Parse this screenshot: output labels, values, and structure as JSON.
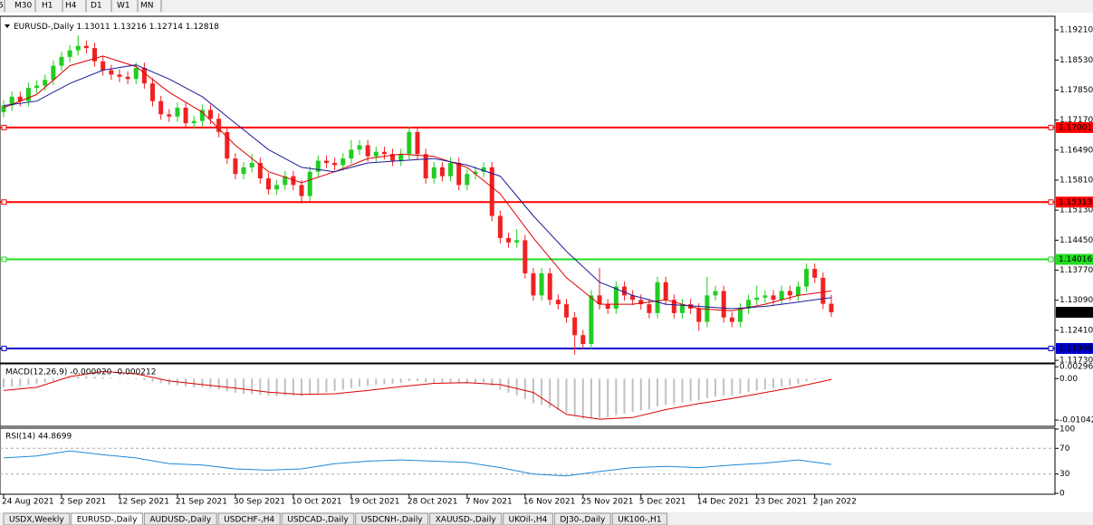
{
  "toolbar": {
    "timeframes": [
      "5",
      "M30",
      "H1",
      "H4",
      "D1",
      "W1",
      "MN"
    ]
  },
  "chart_data": [
    {
      "type": "candlestick",
      "title": "EURUSD-,Daily",
      "ohlc_header": [
        1.13011,
        1.13216,
        1.12714,
        1.12818
      ],
      "up_color": "#22cc22",
      "down_color": "#ee2222",
      "categories": [
        "24 Aug 2021",
        null,
        null,
        null,
        null,
        null,
        null,
        "2 Sep 2021",
        null,
        null,
        null,
        null,
        null,
        null,
        "12 Sep 2021",
        null,
        null,
        null,
        null,
        null,
        null,
        "21 Sep 2021",
        null,
        null,
        null,
        null,
        null,
        null,
        "30 Sep 2021",
        null,
        null,
        null,
        null,
        null,
        null,
        "10 Oct 2021",
        null,
        null,
        null,
        null,
        null,
        null,
        "19 Oct 2021",
        null,
        null,
        null,
        null,
        null,
        null,
        "28 Oct 2021",
        null,
        null,
        null,
        null,
        null,
        null,
        "7 Nov 2021",
        null,
        null,
        null,
        null,
        null,
        null,
        "16 Nov 2021",
        null,
        null,
        null,
        null,
        null,
        null,
        "25 Nov 2021",
        null,
        null,
        null,
        null,
        null,
        null,
        "5 Dec 2021",
        null,
        null,
        null,
        null,
        null,
        null,
        "14 Dec 2021",
        null,
        null,
        null,
        null,
        null,
        null,
        "23 Dec 2021",
        null,
        null,
        null,
        null,
        null,
        null,
        "2 Jan 2022",
        null,
        null
      ],
      "ohlc": [
        [
          1.1735,
          1.1762,
          1.1723,
          1.175
        ],
        [
          1.175,
          1.1782,
          1.1738,
          1.177
        ],
        [
          1.177,
          1.1782,
          1.1748,
          1.176
        ],
        [
          1.176,
          1.1802,
          1.1748,
          1.179
        ],
        [
          1.179,
          1.1807,
          1.1778,
          1.1795
        ],
        [
          1.1795,
          1.182,
          1.1783,
          1.1808
        ],
        [
          1.1808,
          1.1852,
          1.1796,
          1.184
        ],
        [
          1.184,
          1.1872,
          1.1828,
          1.186
        ],
        [
          1.186,
          1.1887,
          1.1848,
          1.1875
        ],
        [
          1.1875,
          1.1909,
          1.1863,
          1.1885
        ],
        [
          1.1885,
          1.1897,
          1.1868,
          1.188
        ],
        [
          1.188,
          1.1892,
          1.1838,
          1.185
        ],
        [
          1.185,
          1.1862,
          1.1818,
          1.183
        ],
        [
          1.183,
          1.1842,
          1.1808,
          1.182
        ],
        [
          1.182,
          1.1832,
          1.1803,
          1.1815
        ],
        [
          1.1815,
          1.1827,
          1.1798,
          1.181
        ],
        [
          1.181,
          1.1847,
          1.1798,
          1.1835
        ],
        [
          1.1835,
          1.1847,
          1.1788,
          1.18
        ],
        [
          1.18,
          1.1812,
          1.1748,
          1.176
        ],
        [
          1.176,
          1.1772,
          1.1718,
          1.173
        ],
        [
          1.173,
          1.1742,
          1.1713,
          1.1725
        ],
        [
          1.1725,
          1.1757,
          1.1713,
          1.1745
        ],
        [
          1.1745,
          1.1757,
          1.1698,
          1.171
        ],
        [
          1.171,
          1.1727,
          1.1698,
          1.1715
        ],
        [
          1.1715,
          1.1752,
          1.1703,
          1.174
        ],
        [
          1.174,
          1.1752,
          1.1708,
          1.172
        ],
        [
          1.172,
          1.1732,
          1.1678,
          1.169
        ],
        [
          1.169,
          1.1702,
          1.1618,
          1.163
        ],
        [
          1.163,
          1.1642,
          1.1583,
          1.1595
        ],
        [
          1.1595,
          1.1622,
          1.1583,
          1.161
        ],
        [
          1.161,
          1.164,
          1.1598,
          1.162
        ],
        [
          1.162,
          1.1632,
          1.1573,
          1.1585
        ],
        [
          1.1585,
          1.1597,
          1.1548,
          1.156
        ],
        [
          1.156,
          1.1582,
          1.1548,
          1.157
        ],
        [
          1.157,
          1.1602,
          1.1558,
          1.159
        ],
        [
          1.159,
          1.1602,
          1.1558,
          1.157
        ],
        [
          1.157,
          1.1582,
          1.1528,
          1.1545
        ],
        [
          1.1545,
          1.1612,
          1.1533,
          1.16
        ],
        [
          1.16,
          1.1637,
          1.1588,
          1.1625
        ],
        [
          1.1625,
          1.1637,
          1.1608,
          1.162
        ],
        [
          1.162,
          1.1632,
          1.1603,
          1.1615
        ],
        [
          1.1615,
          1.1642,
          1.1603,
          1.163
        ],
        [
          1.163,
          1.1672,
          1.1618,
          1.165
        ],
        [
          1.165,
          1.1672,
          1.1638,
          1.166
        ],
        [
          1.166,
          1.1672,
          1.1623,
          1.1635
        ],
        [
          1.1635,
          1.1657,
          1.1623,
          1.1645
        ],
        [
          1.1645,
          1.1657,
          1.1628,
          1.164
        ],
        [
          1.164,
          1.1652,
          1.1613,
          1.1625
        ],
        [
          1.1625,
          1.1652,
          1.1613,
          1.164
        ],
        [
          1.164,
          1.1702,
          1.1628,
          1.169
        ],
        [
          1.169,
          1.1702,
          1.1628,
          1.164
        ],
        [
          1.164,
          1.1652,
          1.1573,
          1.1585
        ],
        [
          1.1585,
          1.1622,
          1.1573,
          1.161
        ],
        [
          1.161,
          1.1622,
          1.1578,
          1.159
        ],
        [
          1.159,
          1.1632,
          1.1578,
          1.162
        ],
        [
          1.162,
          1.1632,
          1.1558,
          1.157
        ],
        [
          1.157,
          1.1607,
          1.1558,
          1.1595
        ],
        [
          1.1595,
          1.1612,
          1.1583,
          1.16
        ],
        [
          1.16,
          1.1622,
          1.1588,
          1.161
        ],
        [
          1.161,
          1.1622,
          1.1488,
          1.15
        ],
        [
          1.15,
          1.1512,
          1.1438,
          1.145
        ],
        [
          1.145,
          1.1462,
          1.1428,
          1.144
        ],
        [
          1.144,
          1.147,
          1.1428,
          1.1445
        ],
        [
          1.1445,
          1.1457,
          1.1358,
          1.137
        ],
        [
          1.137,
          1.1382,
          1.1308,
          1.132
        ],
        [
          1.132,
          1.1382,
          1.1308,
          1.137
        ],
        [
          1.137,
          1.1382,
          1.1298,
          1.131
        ],
        [
          1.131,
          1.1322,
          1.1288,
          1.13
        ],
        [
          1.13,
          1.1312,
          1.1258,
          1.127
        ],
        [
          1.127,
          1.1282,
          1.1186,
          1.123
        ],
        [
          1.123,
          1.1242,
          1.1198,
          1.121
        ],
        [
          1.121,
          1.1332,
          1.1198,
          1.132
        ],
        [
          1.132,
          1.1382,
          1.1288,
          1.13
        ],
        [
          1.13,
          1.1312,
          1.1278,
          1.129
        ],
        [
          1.129,
          1.1352,
          1.1278,
          1.134
        ],
        [
          1.134,
          1.1352,
          1.1308,
          1.132
        ],
        [
          1.132,
          1.1332,
          1.1298,
          1.131
        ],
        [
          1.131,
          1.1322,
          1.1288,
          1.13
        ],
        [
          1.13,
          1.1312,
          1.1268,
          1.128
        ],
        [
          1.128,
          1.1362,
          1.1268,
          1.135
        ],
        [
          1.135,
          1.1362,
          1.1298,
          1.131
        ],
        [
          1.131,
          1.1322,
          1.1268,
          1.128
        ],
        [
          1.128,
          1.1312,
          1.1268,
          1.13
        ],
        [
          1.13,
          1.1312,
          1.1278,
          1.129
        ],
        [
          1.129,
          1.1302,
          1.124,
          1.126
        ],
        [
          1.126,
          1.1362,
          1.1248,
          1.132
        ],
        [
          1.132,
          1.1342,
          1.1308,
          1.133
        ],
        [
          1.133,
          1.1342,
          1.1258,
          1.127
        ],
        [
          1.127,
          1.1282,
          1.1248,
          1.126
        ],
        [
          1.126,
          1.1302,
          1.1248,
          1.129
        ],
        [
          1.129,
          1.1322,
          1.1278,
          1.131
        ],
        [
          1.131,
          1.1342,
          1.1298,
          1.1315
        ],
        [
          1.1315,
          1.1332,
          1.1303,
          1.132
        ],
        [
          1.132,
          1.1332,
          1.1298,
          1.131
        ],
        [
          1.131,
          1.1342,
          1.1298,
          1.133
        ],
        [
          1.133,
          1.1342,
          1.1308,
          1.132
        ],
        [
          1.132,
          1.1352,
          1.1308,
          1.134
        ],
        [
          1.134,
          1.1392,
          1.1328,
          1.138
        ],
        [
          1.138,
          1.1392,
          1.1348,
          1.136
        ],
        [
          1.136,
          1.1372,
          1.1289,
          1.1301
        ],
        [
          1.13011,
          1.13216,
          1.12714,
          1.12818
        ]
      ],
      "series": [
        {
          "color": "#dd0000",
          "x": [
            0,
            4,
            8,
            12,
            16,
            20,
            24,
            28,
            32,
            36,
            40,
            44,
            48,
            52,
            56,
            60,
            64,
            68,
            72,
            76,
            80,
            84,
            88,
            92,
            96,
            100
          ],
          "values": [
            1.1745,
            1.1775,
            1.184,
            1.1862,
            1.1838,
            1.178,
            1.1735,
            1.166,
            1.16,
            1.1575,
            1.16,
            1.163,
            1.164,
            1.1635,
            1.161,
            1.155,
            1.145,
            1.136,
            1.13,
            1.13,
            1.131,
            1.129,
            1.1285,
            1.13,
            1.132,
            1.133
          ]
        },
        {
          "color": "#1a1a9a",
          "x": [
            0,
            4,
            8,
            12,
            16,
            20,
            24,
            28,
            32,
            36,
            40,
            44,
            48,
            52,
            56,
            60,
            64,
            68,
            72,
            76,
            80,
            84,
            88,
            92,
            96,
            100
          ],
          "values": [
            1.175,
            1.176,
            1.18,
            1.183,
            1.1842,
            1.181,
            1.177,
            1.171,
            1.165,
            1.161,
            1.16,
            1.162,
            1.1625,
            1.163,
            1.1615,
            1.159,
            1.15,
            1.142,
            1.135,
            1.132,
            1.13,
            1.1295,
            1.129,
            1.1295,
            1.1305,
            1.1315
          ]
        }
      ],
      "levels": [
        {
          "value": 1.17001,
          "color": "#ff0000"
        },
        {
          "value": 1.15313,
          "color": "#ff0000"
        },
        {
          "value": 1.14016,
          "color": "#22dd22"
        },
        {
          "value": 1.11999,
          "color": "#0000cc"
        }
      ],
      "last_price": 1.12818,
      "ylim": [
        1.1167,
        1.1952
      ],
      "yticks": [
        {
          "value": 1.1921,
          "label": "1.19210"
        },
        {
          "value": 1.1853,
          "label": "1.18530"
        },
        {
          "value": 1.1785,
          "label": "1.17850"
        },
        {
          "value": 1.1717,
          "label": "1.17170"
        },
        {
          "value": 1.1649,
          "label": "1.16490"
        },
        {
          "value": 1.1581,
          "label": "1.15810"
        },
        {
          "value": 1.1513,
          "label": "1.15130"
        },
        {
          "value": 1.1445,
          "label": "1.14450"
        },
        {
          "value": 1.1377,
          "label": "1.13770"
        },
        {
          "value": 1.1309,
          "label": "1.13090"
        },
        {
          "value": 1.1241,
          "label": "1.12410"
        },
        {
          "value": 1.1173,
          "label": "1.11730"
        }
      ]
    },
    {
      "type": "bar",
      "title": "MACD(12,26,9) -0.000020 -0.000212",
      "color": "#c0c0c0",
      "values": [
        -0.0022,
        -0.002,
        -0.0019,
        -0.0016,
        -0.0013,
        -0.001,
        -0.0006,
        -0.0002,
        0.0002,
        0.0005,
        0.0006,
        0.0005,
        0.0004,
        0.0002,
        0.0001,
        -0.0001,
        -0.0002,
        -0.0004,
        -0.0008,
        -0.0012,
        -0.0015,
        -0.0017,
        -0.002,
        -0.0022,
        -0.0022,
        -0.0024,
        -0.0027,
        -0.0032,
        -0.0036,
        -0.0038,
        -0.0039,
        -0.0041,
        -0.0043,
        -0.0044,
        -0.0043,
        -0.0043,
        -0.0044,
        -0.0041,
        -0.0037,
        -0.0034,
        -0.0031,
        -0.0028,
        -0.0024,
        -0.002,
        -0.0018,
        -0.0016,
        -0.0014,
        -0.0013,
        -0.0011,
        -0.0006,
        -0.0006,
        -0.0009,
        -0.001,
        -0.0011,
        -0.001,
        -0.0012,
        -0.0012,
        -0.0011,
        -0.001,
        -0.0018,
        -0.0028,
        -0.0036,
        -0.0042,
        -0.0052,
        -0.0062,
        -0.0066,
        -0.0073,
        -0.0079,
        -0.0086,
        -0.0094,
        -0.0101,
        -0.01,
        -0.0099,
        -0.0097,
        -0.0092,
        -0.0088,
        -0.0084,
        -0.008,
        -0.0077,
        -0.007,
        -0.0066,
        -0.0064,
        -0.006,
        -0.0057,
        -0.0055,
        -0.0049,
        -0.0045,
        -0.0043,
        -0.0042,
        -0.0038,
        -0.0034,
        -0.003,
        -0.0027,
        -0.0024,
        -0.002,
        -0.0017,
        -0.0013,
        -0.0007,
        -0.0003,
        -0.0001,
        -2e-05
      ],
      "signal": {
        "color": "#dd0000",
        "x": [
          0,
          4,
          8,
          12,
          16,
          20,
          24,
          28,
          32,
          36,
          40,
          44,
          48,
          52,
          56,
          60,
          64,
          68,
          72,
          76,
          80,
          84,
          88,
          92,
          96,
          100
        ],
        "values": [
          -0.003,
          -0.0022,
          0.0005,
          0.0018,
          0.0012,
          -0.0006,
          -0.0015,
          -0.0024,
          -0.0034,
          -0.004,
          -0.0038,
          -0.003,
          -0.002,
          -0.0012,
          -0.001,
          -0.0015,
          -0.0035,
          -0.009,
          -0.0102,
          -0.0098,
          -0.0078,
          -0.0063,
          -0.005,
          -0.0035,
          -0.002,
          -0.000212
        ]
      },
      "ylim": [
        -0.012,
        0.0037
      ],
      "yticks": [
        0.002966,
        {
          "value": 0,
          "label": "0.00"
        },
        -0.010422
      ]
    },
    {
      "type": "line",
      "title": "RSI(14) 44.8699",
      "color": "#1e88d8",
      "x": [
        0,
        4,
        8,
        12,
        16,
        20,
        24,
        28,
        32,
        36,
        40,
        44,
        48,
        52,
        56,
        60,
        64,
        68,
        72,
        76,
        80,
        84,
        88,
        92,
        96,
        100
      ],
      "values": [
        55,
        58,
        66,
        60,
        55,
        46,
        44,
        38,
        36,
        38,
        46,
        50,
        52,
        50,
        48,
        40,
        30,
        27,
        34,
        40,
        42,
        40,
        44,
        47,
        52,
        44.8699
      ],
      "levels": [
        70,
        30
      ],
      "ylim": [
        0,
        100
      ],
      "yticks": [
        100,
        70,
        30,
        0
      ]
    }
  ],
  "tabs": [
    "USDX,Weekly",
    "EURUSD-,Daily",
    "AUDUSD-,Daily",
    "USDCHF-,H4",
    "USDCAD-,Daily",
    "USDCNH-,Daily",
    "XAUUSD-,Daily",
    "UKOil-,H4",
    "DJ30-,Daily",
    "UK100-,H1"
  ]
}
